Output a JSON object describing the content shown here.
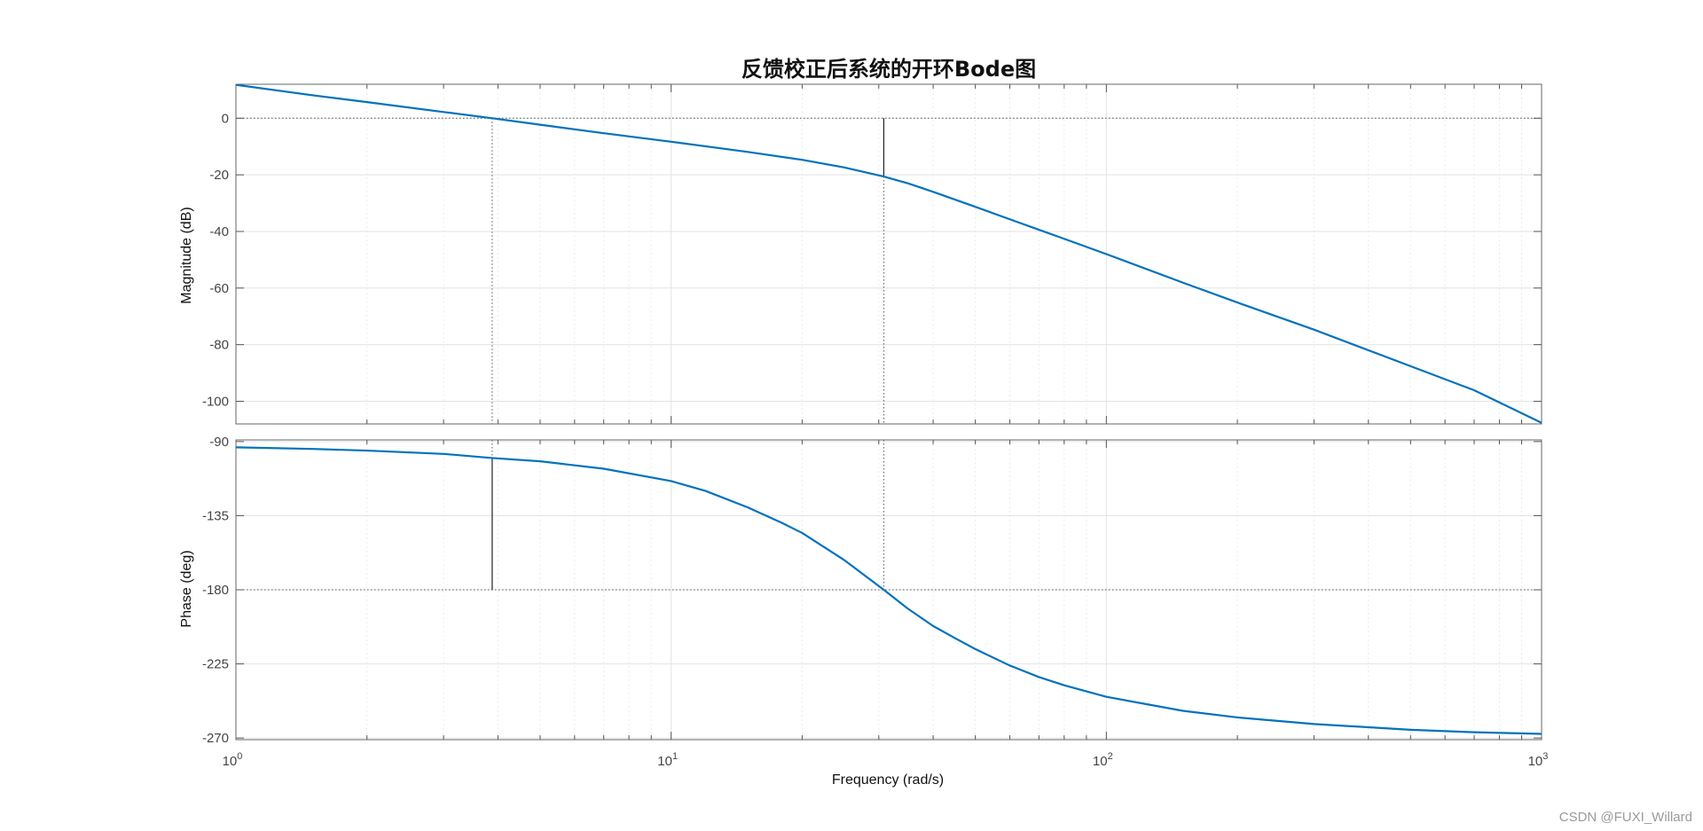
{
  "chart_data": {
    "type": "line",
    "title": "反馈校正后系统的开环Bode图",
    "xlabel": "Frequency  (rad/s)",
    "xscale": "log",
    "xlim": [
      1,
      1000
    ],
    "x_tick_labels": [
      {
        "base": "10",
        "exp": "0",
        "value": 1
      },
      {
        "base": "10",
        "exp": "1",
        "value": 10
      },
      {
        "base": "10",
        "exp": "2",
        "value": 100
      },
      {
        "base": "10",
        "exp": "3",
        "value": 1000
      }
    ],
    "grid": true,
    "line_color": "#0072BD",
    "magnitude": {
      "ylabel": "Magnitude (dB)",
      "ylim": [
        -108,
        12
      ],
      "yticks": [
        0,
        -20,
        -40,
        -60,
        -80,
        -100
      ],
      "gain_crossover_line_db": 0,
      "series": [
        {
          "x": [
            1,
            1.5,
            2,
            3,
            3.88,
            5,
            7,
            10,
            15,
            20,
            25,
            30.8,
            35,
            40,
            50,
            60,
            70,
            80,
            100,
            150,
            200,
            300,
            500,
            700,
            1000
          ],
          "values": [
            11.8,
            8.1,
            5.7,
            2.2,
            0,
            -2.3,
            -5.3,
            -8.3,
            -11.9,
            -14.7,
            -17.4,
            -20.6,
            -23.0,
            -26.0,
            -31.3,
            -35.7,
            -39.4,
            -42.6,
            -48.0,
            -58.1,
            -65.1,
            -74.7,
            -87.6,
            -96.1,
            -107.6
          ]
        }
      ],
      "gain_crossover": {
        "frequency": 3.88,
        "value": 0
      },
      "gain_margin_marker": {
        "frequency": 30.8,
        "from": 0,
        "to": -20.6
      }
    },
    "phase": {
      "ylabel": "Phase (deg)",
      "ylim": [
        -271,
        -89
      ],
      "yticks": [
        -90,
        -135,
        -180,
        -225,
        -270
      ],
      "phase_crossover_line_deg": -180,
      "series": [
        {
          "x": [
            1,
            1.5,
            2,
            3,
            3.88,
            5,
            7,
            10,
            12,
            15,
            18,
            20,
            25,
            30.8,
            35,
            40,
            45,
            50,
            60,
            70,
            80,
            100,
            150,
            200,
            300,
            500,
            700,
            1000
          ],
          "values": [
            -93.5,
            -94.5,
            -95.5,
            -97.5,
            -100.0,
            -102.0,
            -106.5,
            -114.0,
            -120.0,
            -130.0,
            -139.5,
            -145.5,
            -162.0,
            -180.0,
            -191.5,
            -202.0,
            -209.5,
            -216.0,
            -226.0,
            -233.0,
            -238.0,
            -245.0,
            -253.5,
            -257.5,
            -261.5,
            -265.0,
            -266.5,
            -267.5
          ]
        }
      ],
      "phase_crossover": {
        "frequency": 30.8,
        "value": -180
      },
      "phase_margin_marker": {
        "frequency": 3.88,
        "from": -100.0,
        "to": -180
      }
    }
  },
  "watermark": "CSDN @FUXI_Willard"
}
